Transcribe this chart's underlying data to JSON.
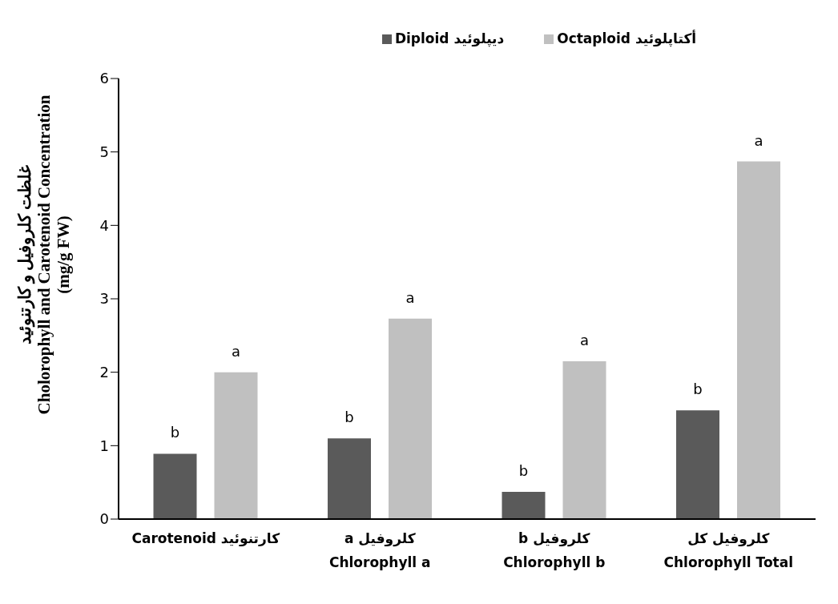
{
  "chart_data": {
    "type": "bar",
    "ylabel": "غلظت کلروفیل و کارتنوئید\nCholorophyll and Carotenoid Concentration\n(mg/g FW)",
    "categories": [
      "Carotenoid کارتنوئید",
      "کلروفیل a\nChlorophyll a",
      "کلروفیل b\nChlorophyll b",
      "کلروفیل کل\nChlorophyll Total"
    ],
    "series": [
      {
        "name": "Diploid دیپلوئید",
        "color": "#5a5a5a",
        "values": [
          0.89,
          1.1,
          0.37,
          1.48
        ]
      },
      {
        "name": "Octaploid أکتاپلوئید",
        "color": "#c0c0c0",
        "values": [
          2.0,
          2.73,
          2.15,
          4.87
        ]
      }
    ],
    "annotations": [
      "b",
      "b",
      "b",
      "b",
      "a",
      "a",
      "a",
      "a"
    ],
    "ylim": [
      0,
      6
    ],
    "yticks": [
      0,
      1,
      2,
      3,
      4,
      5,
      6
    ],
    "grid": false,
    "legend": "top"
  }
}
